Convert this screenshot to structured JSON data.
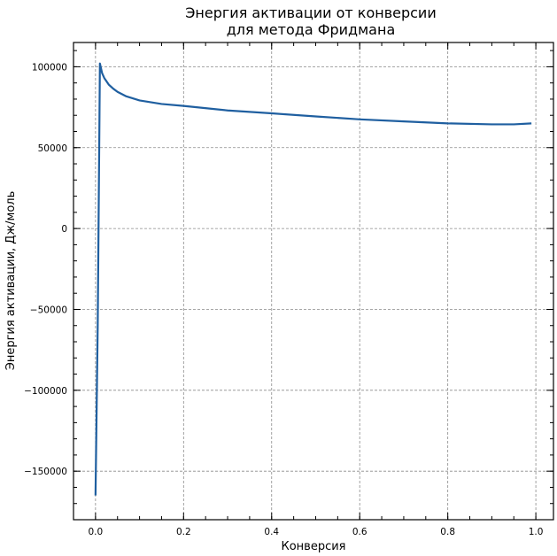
{
  "chart_data": {
    "type": "line",
    "title_lines": [
      "Энергия активации от конверсии",
      "для метода Фридмана"
    ],
    "xlabel": "Конверсия",
    "ylabel": "Энергия активации, Дж/моль",
    "xlim": [
      -0.05,
      1.04
    ],
    "ylim": [
      -180000,
      115000
    ],
    "x_ticks": [
      0.0,
      0.2,
      0.4,
      0.6,
      0.8,
      1.0
    ],
    "x_tick_labels": [
      "0.0",
      "0.2",
      "0.4",
      "0.6",
      "0.8",
      "1.0"
    ],
    "y_ticks": [
      -150000,
      -100000,
      -50000,
      0,
      50000,
      100000
    ],
    "y_tick_labels": [
      "−150000",
      "−100000",
      "−50000",
      "0",
      "50000",
      "100000"
    ],
    "grid": true,
    "series": [
      {
        "color": "#1f5fa0",
        "x": [
          0.0,
          0.005,
          0.01,
          0.015,
          0.02,
          0.03,
          0.04,
          0.05,
          0.07,
          0.1,
          0.15,
          0.2,
          0.3,
          0.4,
          0.5,
          0.6,
          0.7,
          0.8,
          0.9,
          0.95,
          0.99
        ],
        "y": [
          -165000,
          -60000,
          102000,
          96000,
          93000,
          89000,
          86500,
          84500,
          81700,
          79200,
          77000,
          75800,
          73000,
          71200,
          69300,
          67500,
          66200,
          65000,
          64400,
          64400,
          65000
        ]
      }
    ]
  }
}
